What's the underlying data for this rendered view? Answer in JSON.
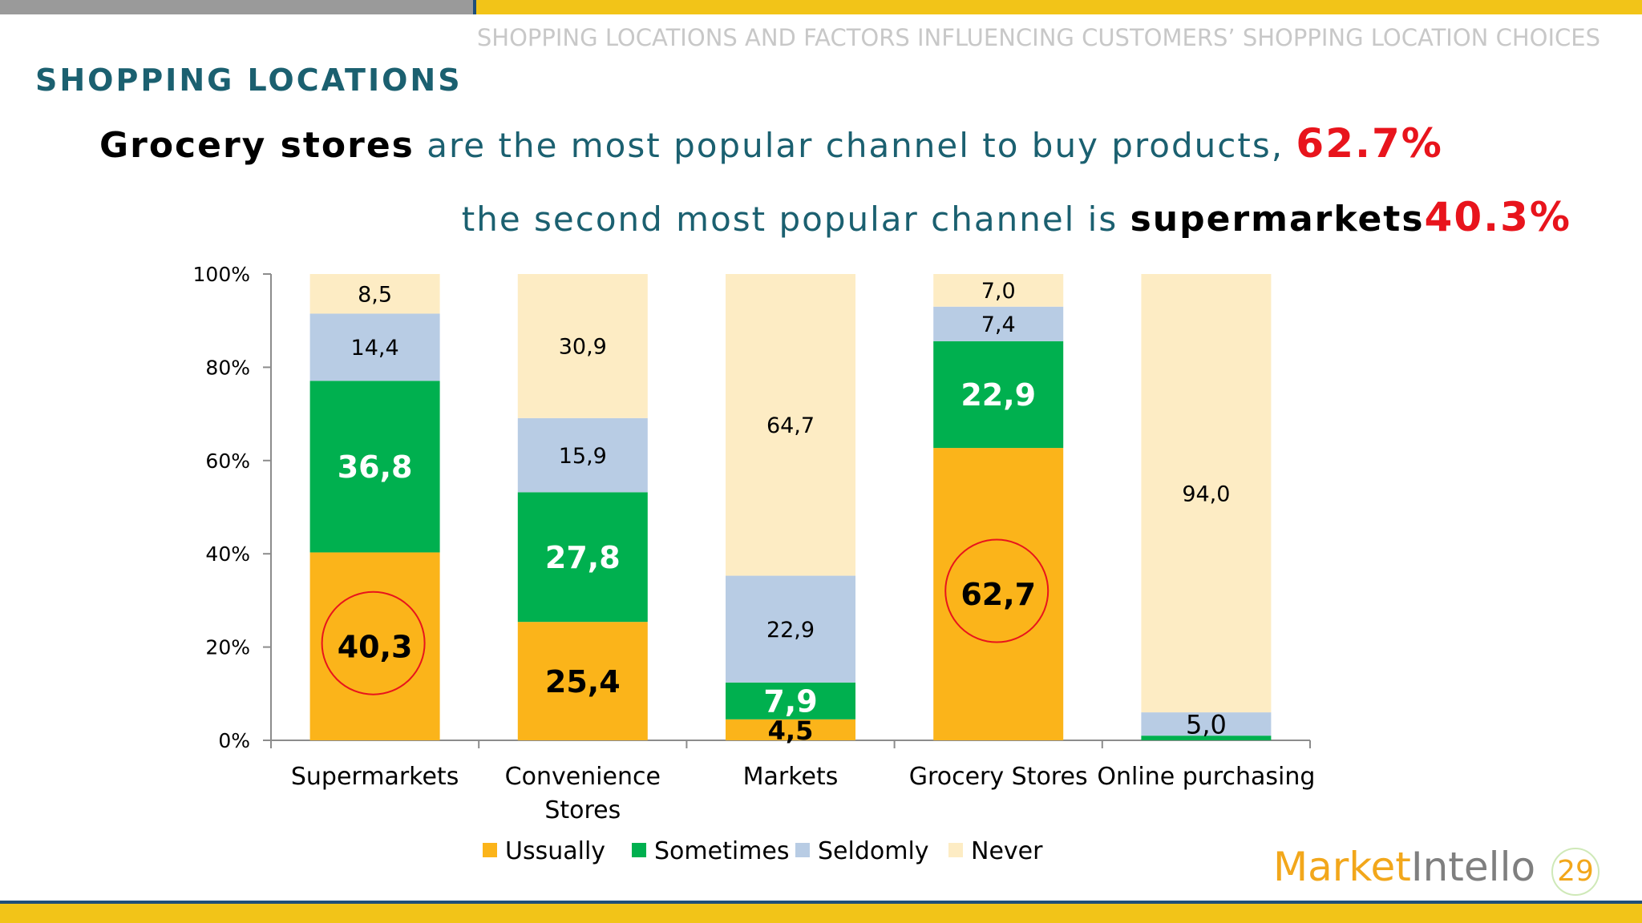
{
  "slide": {
    "header_title": "SHOPPING LOCATIONS AND FACTORS INFLUENCING CUSTOMERS’ SHOPPING LOCATION CHOICES",
    "section_title": "SHOPPING LOCATIONS",
    "headline1": {
      "strong": "Grocery stores",
      "text": " are the most popular channel to buy products, ",
      "pct": "62.7%"
    },
    "headline2": {
      "text": "the second most popular channel is ",
      "strong": "supermarkets",
      "pct": "40.3%"
    },
    "logo": {
      "part1": "Market",
      "part2": "Intello"
    },
    "page_number": "29"
  },
  "colors": {
    "Ussually": "#fbb41a",
    "Sometimes": "#00b04f",
    "Seldomly": "#b8cce4",
    "Never": "#fdecc4"
  },
  "chart_data": {
    "type": "bar",
    "stacked": true,
    "categories": [
      "Supermarkets",
      "Convenience Stores",
      "Markets",
      "Grocery Stores",
      "Online purchasing"
    ],
    "category_lines": [
      [
        "Supermarkets"
      ],
      [
        "Convenience",
        "Stores"
      ],
      [
        "Markets"
      ],
      [
        "Grocery Stores"
      ],
      [
        "Online purchasing"
      ]
    ],
    "series": [
      {
        "name": "Ussually",
        "values": [
          40.3,
          25.4,
          4.5,
          62.7,
          0.0
        ],
        "labels": [
          "40,3",
          "25,4",
          "4,5",
          "62,7",
          ""
        ]
      },
      {
        "name": "Sometimes",
        "values": [
          36.8,
          27.8,
          7.9,
          22.9,
          1.0
        ],
        "labels": [
          "36,8",
          "27,8",
          "7,9",
          "22,9",
          ""
        ]
      },
      {
        "name": "Seldomly",
        "values": [
          14.4,
          15.9,
          22.9,
          7.4,
          5.0
        ],
        "labels": [
          "14,4",
          "15,9",
          "22,9",
          "7,4",
          "5,0"
        ]
      },
      {
        "name": "Never",
        "values": [
          8.5,
          30.9,
          64.7,
          7.0,
          94.0
        ],
        "labels": [
          "8,5",
          "30,9",
          "64,7",
          "7,0",
          "94,0"
        ]
      }
    ],
    "ylim": [
      0,
      100
    ],
    "yticks": [
      "0%",
      "20%",
      "40%",
      "60%",
      "80%",
      "100%"
    ],
    "highlighted": [
      "40,3",
      "62,7"
    ],
    "legend_position": "bottom",
    "grid": false
  }
}
